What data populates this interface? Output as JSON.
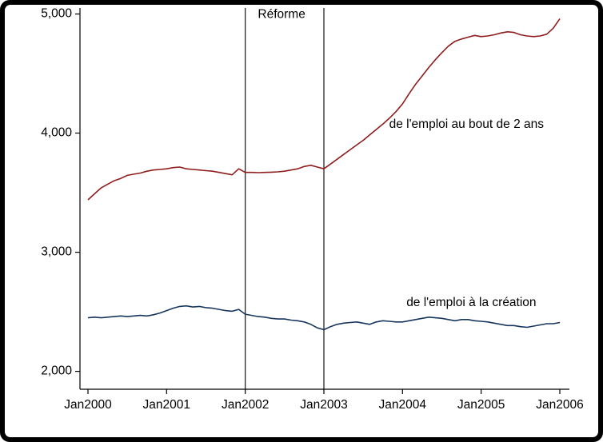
{
  "page": {
    "background_color": "#ffffff",
    "frame_color": "#000000"
  },
  "chart_data": {
    "type": "line",
    "title": "",
    "xlabel": "",
    "ylabel": "",
    "grid": false,
    "legend_position": "inline-annotations",
    "x_start_year": 2000,
    "points_per_year": 12,
    "ylim": [
      1850,
      5050
    ],
    "y_ticks": [
      {
        "value": 2000,
        "label": "2,000"
      },
      {
        "value": 3000,
        "label": "3,000"
      },
      {
        "value": 4000,
        "label": "4,000"
      },
      {
        "value": 5000,
        "label": "5,000"
      }
    ],
    "x_ticks": [
      {
        "year": 2000,
        "label": "Jan2000"
      },
      {
        "year": 2001,
        "label": "Jan2001"
      },
      {
        "year": 2002,
        "label": "Jan2002"
      },
      {
        "year": 2003,
        "label": "Jan2003"
      },
      {
        "year": 2004,
        "label": "Jan2004"
      },
      {
        "year": 2005,
        "label": "Jan2005"
      },
      {
        "year": 2006,
        "label": "Jan2006"
      }
    ],
    "reference_lines": [
      {
        "x_year": 2002,
        "color": "#000000"
      },
      {
        "x_year": 2003,
        "color": "#000000"
      }
    ],
    "annotations": [
      {
        "text": "Réforme",
        "x_year": 2002.16,
        "y_value": 4995,
        "color": "#000000",
        "anchor": "start"
      },
      {
        "text": "de l'emploi au bout de 2 ans",
        "x_year": 2003.83,
        "y_value": 4070,
        "color": "#8f1d1d",
        "anchor": "start"
      },
      {
        "text": "de l'emploi à la création",
        "x_year": 2004.05,
        "y_value": 2575,
        "color": "#17365d",
        "anchor": "start"
      }
    ],
    "series": [
      {
        "name": "de l'emploi au bout de 2 ans",
        "color": "#8f1d1d",
        "values": [
          3440,
          3490,
          3540,
          3570,
          3600,
          3620,
          3645,
          3655,
          3665,
          3680,
          3690,
          3695,
          3700,
          3710,
          3715,
          3700,
          3695,
          3690,
          3685,
          3680,
          3670,
          3660,
          3650,
          3700,
          3670,
          3670,
          3668,
          3670,
          3672,
          3675,
          3680,
          3690,
          3700,
          3720,
          3730,
          3715,
          3700,
          3740,
          3780,
          3820,
          3860,
          3900,
          3940,
          3985,
          4030,
          4075,
          4125,
          4180,
          4245,
          4330,
          4410,
          4480,
          4550,
          4615,
          4675,
          4730,
          4770,
          4790,
          4805,
          4820,
          4810,
          4815,
          4825,
          4840,
          4850,
          4845,
          4825,
          4815,
          4810,
          4815,
          4830,
          4880,
          4960
        ]
      },
      {
        "name": "de l'emploi à la création",
        "color": "#17365d",
        "values": [
          2450,
          2455,
          2450,
          2455,
          2460,
          2465,
          2460,
          2465,
          2470,
          2465,
          2475,
          2490,
          2510,
          2530,
          2545,
          2550,
          2540,
          2545,
          2535,
          2530,
          2520,
          2510,
          2505,
          2520,
          2480,
          2470,
          2460,
          2455,
          2445,
          2440,
          2440,
          2430,
          2425,
          2415,
          2395,
          2365,
          2350,
          2375,
          2395,
          2405,
          2410,
          2415,
          2405,
          2395,
          2415,
          2425,
          2420,
          2415,
          2415,
          2425,
          2435,
          2445,
          2455,
          2450,
          2445,
          2435,
          2425,
          2435,
          2435,
          2425,
          2420,
          2415,
          2405,
          2395,
          2385,
          2385,
          2375,
          2370,
          2380,
          2390,
          2400,
          2400,
          2410
        ]
      }
    ]
  }
}
